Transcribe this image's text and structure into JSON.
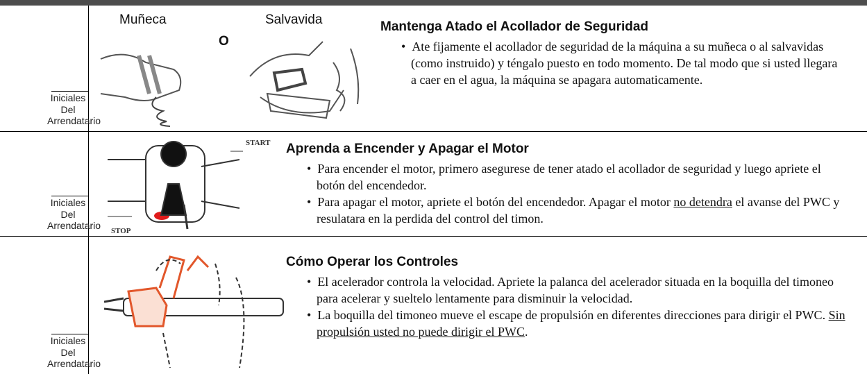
{
  "rows": [
    {
      "initials_label": [
        "Iniciales",
        "Del",
        "Arrendatario"
      ],
      "image_labels": [
        "Muñeca",
        "O",
        "Salvavida"
      ],
      "title": "Mantenga Atado el Acollador de Seguridad",
      "bullets": [
        [
          {
            "text": "Ate fijamente el acollador de seguridad de la máquina a su muñeca o al salvavidas (como instruido) y téngalo puesto en todo momento.  De tal modo que  si usted llegara a caer en el agua, la máquina se apagara  automaticamente."
          }
        ]
      ]
    },
    {
      "initials_label": [
        "Iniciales",
        "Del",
        "Arrendatario"
      ],
      "image_labels": [
        "START",
        "STOP"
      ],
      "title": "Aprenda a Encender y Apagar el Motor",
      "bullets": [
        [
          {
            "text": "Para encender el motor, primero asegurese de tener atado el acollador de seguridad y luego apriete el botón del encendedor."
          }
        ],
        [
          {
            "text": "Para apagar el motor, apriete el botón del encendedor.  Apagar el motor "
          },
          {
            "text": "no detendra",
            "underline": true
          },
          {
            "text": " el avanse del PWC y resulatara en la perdida del control del timon."
          }
        ]
      ]
    },
    {
      "initials_label": [
        "Iniciales",
        "Del",
        "Arrendatario"
      ],
      "image_labels": [],
      "title": "Cómo Operar los Controles",
      "bullets": [
        [
          {
            "text": "El acelerador controla la velocidad.  Apriete la palanca del acelerador situada en la boquilla del timoneo para acelerar y sueltelo lentamente para disminuir la velocidad."
          }
        ],
        [
          {
            "text": "La boquilla del timoneo mueve el escape de propulsión en diferentes direcciones para dirigir el PWC.  "
          },
          {
            "text": "Sin propulsión usted no puede dirigir el PWC",
            "underline": true
          },
          {
            "text": "."
          }
        ]
      ]
    }
  ]
}
